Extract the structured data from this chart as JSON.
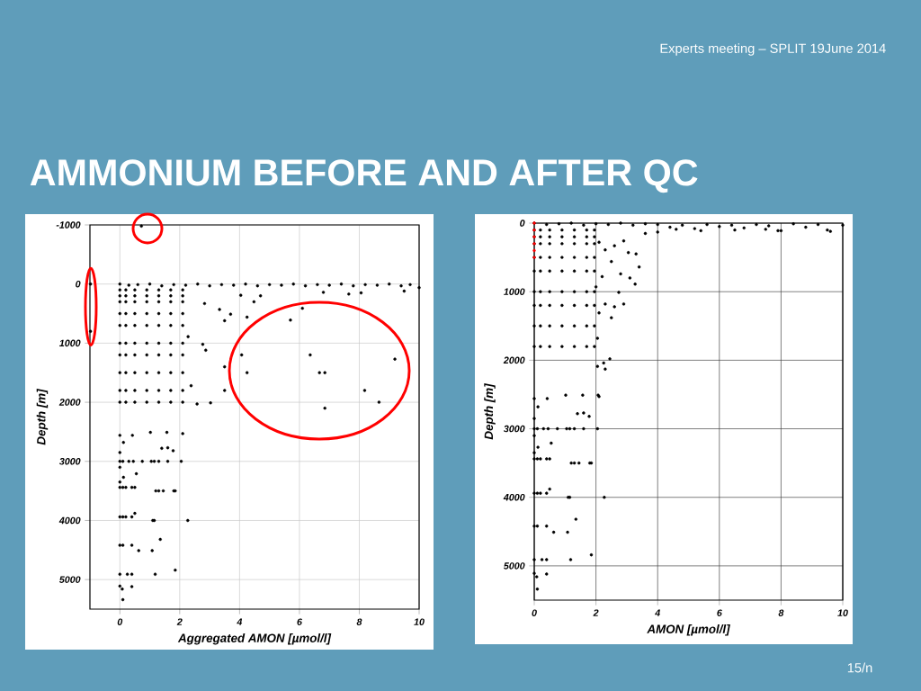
{
  "chart_data": [
    {
      "type": "scatter",
      "title": "AMMONIUM BEFORE AND AFTER QC",
      "annotations": [
        "Experts meeting – SPLIT 19June 2014"
      ],
      "xlabel": "Aggregated AMON [µmol/l]",
      "ylabel": "Depth [m]",
      "xlim": [
        -1,
        10
      ],
      "ylim": [
        5500,
        -1000
      ],
      "xticks": [
        0,
        2,
        4,
        6,
        8,
        10
      ],
      "yticks": [
        -1000,
        0,
        1000,
        2000,
        3000,
        4000,
        5000
      ],
      "grid": true,
      "marker": "circle",
      "series": [
        {
          "color": "#000000",
          "x": [
            0,
            0.3,
            0.6,
            1,
            1.4,
            1.8,
            2.2,
            2.6,
            3,
            3.4,
            3.8,
            4.2,
            4.6,
            5,
            5.4,
            5.8,
            6.2,
            6.6,
            7,
            7.4,
            7.8,
            8.2,
            8.6,
            9,
            9.4,
            9.7,
            10,
            9.5,
            8.06,
            7.65,
            6.8,
            4.7,
            4.04,
            4.48,
            6.1,
            5.7,
            4.25,
            3.7,
            3.5,
            3.33,
            2.83,
            2.77,
            2.87,
            2.28,
            2.38,
            2.58,
            3.03,
            3.5,
            3.5,
            4.07,
            4.25,
            6.36,
            6.67,
            6.85,
            9.19,
            8.18,
            8.66,
            6.85,
            0.72,
            -0.98,
            -0.98,
            0,
            0.2,
            0.5,
            0.9,
            1.3,
            1.7,
            2.1,
            0,
            0.2,
            0.5,
            0.9,
            1.3,
            1.7,
            2.1,
            0,
            0.2,
            0.5,
            0.9,
            1.3,
            1.7,
            2.1,
            0,
            0.2,
            0.5,
            0.9,
            1.3,
            1.7,
            2.1,
            0,
            0.2,
            0.5,
            0.9,
            1.3,
            1.7,
            2.1,
            0,
            0.2,
            0.5,
            0.9,
            1.3,
            1.7,
            2.1,
            0,
            0.2,
            0.5,
            0.9,
            1.3,
            1.7,
            2.1,
            0,
            0.2,
            0.5,
            0.9,
            1.3,
            1.7,
            2.1,
            0,
            0.2,
            0.5,
            0.9,
            1.3,
            1.7,
            2.1,
            0,
            0.2,
            0.5,
            0.9,
            1.3,
            1.7,
            2.1,
            0,
            0.12,
            0,
            0.42,
            1.02,
            1.57,
            2.1,
            1.4,
            1.6,
            1.78,
            0,
            0.1,
            0.3,
            0.45,
            0.75,
            1.05,
            1.15,
            1.3,
            1.6,
            2.05,
            0,
            0.12,
            0.55,
            0,
            0,
            0.1,
            0.2,
            0.4,
            0.5,
            1.2,
            1.3,
            1.45,
            1.8,
            1.85,
            0,
            0.1,
            0.2,
            0.4,
            0.5,
            1.1,
            1.15,
            2.27,
            1.35,
            0,
            0.1,
            0.4,
            0.63,
            1.08,
            0,
            0.25,
            0.4,
            1.18,
            1.85,
            0,
            0.08,
            0.4,
            0.1
          ],
          "values": [
            0,
            20,
            10,
            0,
            30,
            10,
            20,
            0,
            30,
            10,
            20,
            0,
            30,
            10,
            20,
            0,
            30,
            10,
            20,
            0,
            30,
            10,
            20,
            0,
            30,
            10,
            60,
            120,
            150,
            170,
            140,
            200,
            190,
            300,
            410,
            610,
            560,
            510,
            620,
            430,
            330,
            1020,
            1120,
            890,
            1720,
            2030,
            2010,
            1400,
            1800,
            1200,
            1500,
            1200,
            1500,
            1500,
            1270,
            1800,
            2000,
            2100,
            -980,
            0,
            800,
            100,
            100,
            100,
            100,
            100,
            100,
            100,
            200,
            200,
            200,
            200,
            200,
            200,
            200,
            300,
            300,
            300,
            300,
            300,
            300,
            300,
            500,
            500,
            500,
            500,
            500,
            500,
            500,
            700,
            700,
            700,
            700,
            700,
            700,
            700,
            1000,
            1000,
            1000,
            1000,
            1000,
            1000,
            1000,
            1200,
            1200,
            1200,
            1200,
            1200,
            1200,
            1200,
            1500,
            1500,
            1500,
            1500,
            1500,
            1500,
            1500,
            1800,
            1800,
            1800,
            1800,
            1800,
            1800,
            1800,
            2000,
            2000,
            2000,
            2000,
            2000,
            2000,
            2000,
            2560,
            2680,
            2850,
            2560,
            2510,
            2510,
            2530,
            2780,
            2770,
            2820,
            3000,
            3000,
            3000,
            3000,
            3000,
            3000,
            3000,
            3000,
            3000,
            3000,
            3100,
            3270,
            3210,
            3350,
            3440,
            3440,
            3440,
            3440,
            3440,
            3500,
            3500,
            3500,
            3500,
            3500,
            3940,
            3940,
            3940,
            3940,
            3880,
            4000,
            4000,
            4000,
            4320,
            4420,
            4420,
            4420,
            4510,
            4510,
            4910,
            4910,
            4910,
            4910,
            4840,
            5110,
            5160,
            5120,
            5340
          ]
        }
      ]
    },
    {
      "type": "scatter",
      "annotations": [
        "15/n"
      ],
      "xlabel": "AMON [µmol/l]",
      "ylabel": "Depth [m]",
      "xlim": [
        0,
        10
      ],
      "ylim": [
        5500,
        0
      ],
      "xticks": [
        0,
        2,
        4,
        6,
        8,
        10
      ],
      "yticks": [
        0,
        1000,
        2000,
        3000,
        4000,
        5000
      ],
      "grid": true,
      "marker": "circle",
      "series": [
        {
          "color": "#000000",
          "x": [
            0,
            0.4,
            0.8,
            1.2,
            1.6,
            2,
            2.4,
            2.8,
            3.2,
            3.6,
            4,
            4.4,
            4.8,
            5.2,
            5.6,
            6,
            6.4,
            6.8,
            7.2,
            7.6,
            8,
            8.4,
            8.8,
            9.2,
            9.6,
            10,
            9.5,
            7.9,
            7.5,
            6.5,
            5.4,
            4.6,
            4,
            3.6,
            2.1,
            2.3,
            2.6,
            2.9,
            3.05,
            3.3,
            3.4,
            3.27,
            3.1,
            2.8,
            2.5,
            2.2,
            2,
            2.74,
            2.9,
            2.6,
            2.5,
            2.3,
            2.1,
            2.05,
            2.25,
            2.45,
            2.05,
            2.3,
            2.07,
            0,
            0.2,
            0.5,
            0.9,
            1.3,
            1.7,
            1.95,
            0,
            0.2,
            0.5,
            0.9,
            1.3,
            1.7,
            1.95,
            0,
            0.2,
            0.5,
            0.9,
            1.3,
            1.7,
            1.95,
            0,
            0.2,
            0.5,
            0.9,
            1.3,
            1.7,
            1.95,
            0,
            0.2,
            0.5,
            0.9,
            1.3,
            1.7,
            1.95,
            0,
            0.2,
            0.5,
            0.9,
            1.3,
            1.7,
            1.95,
            0,
            0.2,
            0.5,
            0.9,
            1.3,
            1.7,
            1.95,
            0,
            0.2,
            0.5,
            0.9,
            1.3,
            1.7,
            1.95,
            0,
            0.2,
            0.5,
            0.9,
            1.3,
            1.7,
            1.95,
            0,
            0.12,
            0,
            0.42,
            1.02,
            1.57,
            2.1,
            1.4,
            1.6,
            1.78,
            0,
            0.1,
            0.3,
            0.45,
            0.75,
            1.05,
            1.15,
            1.3,
            1.6,
            2.05,
            0,
            0.12,
            0.55,
            0,
            0,
            0.1,
            0.2,
            0.4,
            0.5,
            1.2,
            1.3,
            1.45,
            1.8,
            1.85,
            0,
            0.1,
            0.2,
            0.4,
            0.5,
            1.1,
            1.15,
            2.27,
            1.35,
            0,
            0.1,
            0.4,
            0.63,
            1.08,
            0,
            0.25,
            0.4,
            1.18,
            1.85,
            0,
            0.08,
            0.4,
            0.1
          ],
          "values": [
            0,
            20,
            10,
            0,
            30,
            10,
            20,
            0,
            30,
            10,
            20,
            60,
            30,
            80,
            20,
            50,
            30,
            70,
            20,
            40,
            110,
            10,
            60,
            20,
            120,
            30,
            100,
            110,
            90,
            100,
            110,
            90,
            130,
            150,
            280,
            390,
            330,
            260,
            430,
            450,
            640,
            890,
            800,
            740,
            560,
            780,
            930,
            1010,
            1180,
            1220,
            1380,
            1180,
            1310,
            1680,
            2040,
            1980,
            2090,
            2130,
            2510,
            100,
            100,
            100,
            100,
            100,
            100,
            100,
            200,
            200,
            200,
            200,
            200,
            200,
            200,
            300,
            300,
            300,
            300,
            300,
            300,
            300,
            500,
            500,
            500,
            500,
            500,
            500,
            500,
            700,
            700,
            700,
            700,
            700,
            700,
            700,
            1000,
            1000,
            1000,
            1000,
            1000,
            1000,
            1000,
            1200,
            1200,
            1200,
            1200,
            1200,
            1200,
            1200,
            1500,
            1500,
            1500,
            1500,
            1500,
            1500,
            1500,
            1800,
            1800,
            1800,
            1800,
            1800,
            1800,
            1800,
            2560,
            2680,
            2850,
            2560,
            2510,
            2510,
            2530,
            2780,
            2770,
            2820,
            3000,
            3000,
            3000,
            3000,
            3000,
            3000,
            3000,
            3000,
            3000,
            3000,
            3100,
            3270,
            3210,
            3350,
            3440,
            3440,
            3440,
            3440,
            3440,
            3500,
            3500,
            3500,
            3500,
            3500,
            3940,
            3940,
            3940,
            3940,
            3880,
            4000,
            4000,
            4000,
            4320,
            4420,
            4420,
            4420,
            4510,
            4510,
            4910,
            4910,
            4910,
            4910,
            4840,
            5110,
            5160,
            5120,
            5340
          ]
        },
        {
          "color": "#ff0000",
          "x": [
            0,
            0,
            0,
            0,
            0,
            0
          ],
          "values": [
            0,
            100,
            200,
            300,
            400,
            500
          ]
        }
      ]
    }
  ]
}
